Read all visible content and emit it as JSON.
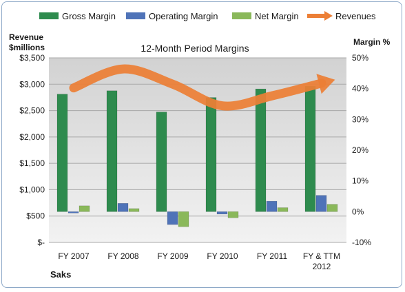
{
  "chart_data": {
    "type": "bar",
    "title": "12-Month Period Margins",
    "company": "Saks",
    "left_axis_label": [
      "Revenue",
      "$millions"
    ],
    "right_axis_label": "Margin %",
    "categories": [
      "FY 2007",
      "FY 2008",
      "FY 2009",
      "FY 2010",
      "FY 2011",
      "FY & TTM 2012"
    ],
    "y_left": {
      "min": 0,
      "max": 3500,
      "step": 500,
      "tick_labels": [
        "$-",
        "$500",
        "$1,000",
        "$1,500",
        "$2,000",
        "$2,500",
        "$3,000",
        "$3,500"
      ]
    },
    "y_right": {
      "min": -10,
      "max": 50,
      "step": 10,
      "tick_labels": [
        "-10%",
        "0%",
        "10%",
        "20%",
        "30%",
        "40%",
        "50%"
      ]
    },
    "legend_position": "top",
    "grid": "horizontal",
    "series": [
      {
        "name": "Gross Margin",
        "axis": "right",
        "kind": "bar",
        "color": "#2e8b4e",
        "values": [
          38.2,
          39.3,
          32.4,
          37.1,
          39.9,
          40.8
        ]
      },
      {
        "name": "Operating Margin",
        "axis": "right",
        "kind": "bar",
        "color": "#4f73b8",
        "values": [
          -0.3,
          2.7,
          -4.2,
          -0.8,
          3.4,
          5.3
        ]
      },
      {
        "name": "Net Margin",
        "axis": "right",
        "kind": "bar",
        "color": "#8ab85a",
        "values": [
          1.9,
          1.0,
          -4.9,
          -2.0,
          1.3,
          2.4
        ]
      },
      {
        "name": "Revenues",
        "axis": "left",
        "kind": "line",
        "color": "#ec7f36",
        "values": [
          2930,
          3290,
          3000,
          2590,
          2780,
          3020
        ]
      }
    ]
  }
}
